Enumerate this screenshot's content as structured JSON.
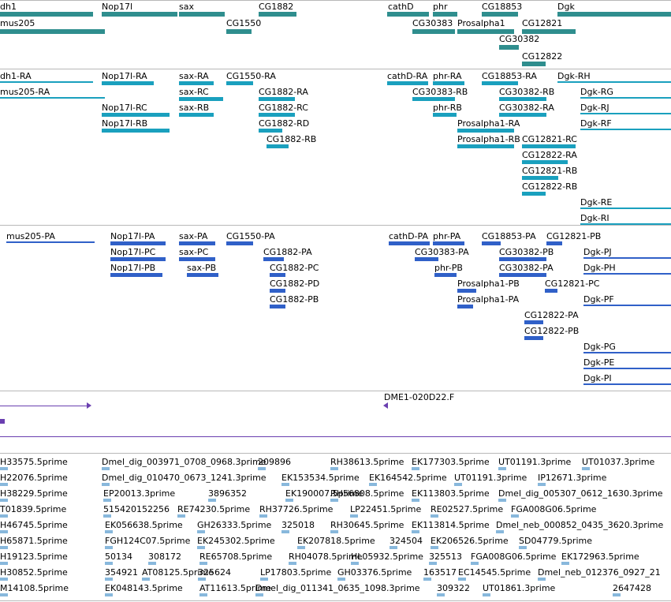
{
  "colors": {
    "genes": "#2f8e8e",
    "transcripts": "#1aa0be",
    "proteins": "#3060c8",
    "cdna": "#6a3fb0",
    "ests": "#88b8dc",
    "separator": "#b8b8b8"
  },
  "genes": {
    "row1": [
      "dh1",
      "Nop17l",
      "sax",
      "CG1882",
      "cathD",
      "phr",
      "CG18853",
      "Dgk"
    ],
    "row2": [
      "mus205",
      "CG1550",
      "CG30383",
      "Prosalpha1",
      "CG12821"
    ],
    "row3": [
      "CG30382"
    ],
    "row4": [
      "CG12822"
    ]
  },
  "transcripts": [
    "dh1-RA",
    "Nop17l-RA",
    "sax-RA",
    "CG1550-RA",
    "cathD-RA",
    "phr-RA",
    "CG18853-RA",
    "Dgk-RH",
    "mus205-RA",
    "sax-RC",
    "CG1882-RA",
    "CG30383-RB",
    "CG30382-RB",
    "Dgk-RG",
    "Nop17l-RC",
    "sax-RB",
    "CG1882-RC",
    "phr-RB",
    "CG30382-RA",
    "Dgk-RJ",
    "Nop17l-RB",
    "CG1882-RD",
    "Prosalpha1-RA",
    "Dgk-RF",
    "CG1882-RB",
    "Prosalpha1-RB",
    "CG12821-RC",
    "CG12822-RA",
    "CG12821-RB",
    "CG12822-RB",
    "Dgk-RE",
    "Dgk-RI"
  ],
  "proteins": [
    "mus205-PA",
    "Nop17l-PA",
    "sax-PA",
    "CG1550-PA",
    "cathD-PA",
    "phr-PA",
    "CG18853-PA",
    "CG12821-PB",
    "Nop17l-PC",
    "sax-PC",
    "CG1882-PA",
    "CG30383-PA",
    "CG30382-PB",
    "Dgk-PJ",
    "Nop17l-PB",
    "sax-PB",
    "CG1882-PC",
    "phr-PB",
    "CG30382-PA",
    "Dgk-PH",
    "CG1882-PD",
    "Prosalpha1-PB",
    "CG12821-PC",
    "CG1882-PB",
    "Prosalpha1-PA",
    "Dgk-PF",
    "CG12822-PA",
    "CG12822-PB",
    "Dgk-PG",
    "Dgk-PE",
    "Dgk-PI"
  ],
  "cdna": {
    "label": "DME1-020D22.F"
  },
  "ests": [
    [
      "H33575.5prime",
      "Dmel_dig_003971_0708_0968.3prime",
      "209896",
      "RH38613.5prime",
      "EK177303.5prime",
      "UT01191.3prime",
      "UT01037.3prime"
    ],
    [
      "H22076.5prime",
      "Dmel_dig_010470_0673_1241.3prime",
      "EK153534.5prime",
      "EK164542.5prime",
      "UT01191.3prime",
      "IP12671.3prime"
    ],
    [
      "H38229.5prime",
      "EP20013.3prime",
      "3896352",
      "EK190007.5prime",
      "RH56808.5prime",
      "EK113803.5prime",
      "Dmel_dig_005307_0612_1630.3prime"
    ],
    [
      "T01839.5prime",
      "515420152256",
      "RE74230.5prime",
      "RH37726.5prime",
      "LP22451.5prime",
      "RE02527.5prime",
      "FGA008G06.5prime"
    ],
    [
      "H46745.5prime",
      "EK056638.5prime",
      "GH26333.5prime",
      "325018",
      "RH30645.5prime",
      "EK113814.5prime",
      "Dmel_neb_000852_0435_3620.3prime"
    ],
    [
      "H65871.5prime",
      "FGH124C07.5prime",
      "EK245302.5prime",
      "EK207818.5prime",
      "324504",
      "EK206526.5prime",
      "SD04779.5prime"
    ],
    [
      "H19123.5prime",
      "50134",
      "308172",
      "RE65708.5prime",
      "RH04078.5prime",
      "HL05932.5prime",
      "325513",
      "FGA008G06.5prime",
      "EK172963.5prime"
    ],
    [
      "H30852.5prime",
      "354921",
      "AT08125.5prime",
      "325624",
      "LP17803.5prime",
      "GH03376.5prime",
      "163517",
      "EC14545.5prime",
      "Dmel_neb_012376_0927_21"
    ],
    [
      "M14108.5prime",
      "EK048143.5prime",
      "AT11613.5prime",
      "Dmel_dig_011341_0635_1098.3prime",
      "309322",
      "UT01861.3prime",
      "2647428"
    ]
  ]
}
